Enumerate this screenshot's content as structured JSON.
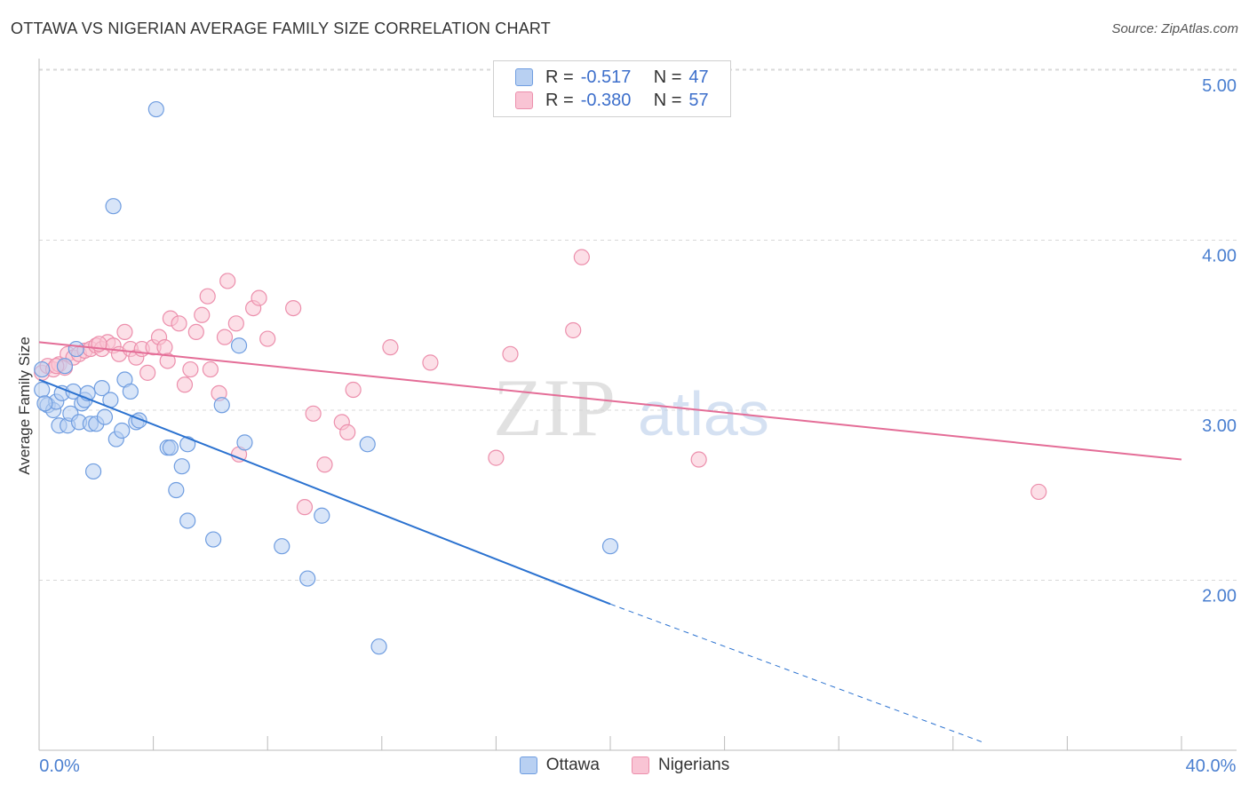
{
  "title": "OTTAWA VS NIGERIAN AVERAGE FAMILY SIZE CORRELATION CHART",
  "source": "Source: ZipAtlas.com",
  "watermark": {
    "zip": "ZIP",
    "atlas": "atlas"
  },
  "legend": {
    "rows": [
      {
        "r_label": "R =",
        "r_value": "-0.517",
        "n_label": "N =",
        "n_value": "47"
      },
      {
        "r_label": "R =",
        "r_value": "-0.380",
        "n_label": "N =",
        "n_value": "57"
      }
    ]
  },
  "colors": {
    "ottawa_fill": "#b8d0f2",
    "ottawa_stroke": "#6f9de0",
    "ottawa_line": "#2b72d0",
    "nigerian_fill": "#f9c4d4",
    "nigerian_stroke": "#ec8fac",
    "nigerian_line": "#e46d97",
    "axis_text": "#4a7fd0",
    "grid": "#d8d8d8"
  },
  "chart_data": {
    "type": "scatter",
    "title": "OTTAWA VS NIGERIAN AVERAGE FAMILY SIZE CORRELATION CHART",
    "xlabel": "",
    "ylabel": "Average Family Size",
    "xlim": [
      0,
      40
    ],
    "ylim": [
      1.0,
      5.15
    ],
    "x_tick_labels": [
      "0.0%",
      "40.0%"
    ],
    "y_ticks": [
      2.0,
      3.0,
      4.0,
      5.0
    ],
    "y_tick_labels": [
      "2.00",
      "3.00",
      "4.00",
      "5.00"
    ],
    "grid": "horizontal dashed",
    "legend_position": "bottom",
    "series": [
      {
        "name": "Ottawa",
        "r": -0.517,
        "n": 47,
        "trend": {
          "x_start": 0,
          "y_start": 3.18,
          "x_solid_end": 20,
          "y_solid_end": 1.86,
          "x_dash_end": 33,
          "y_dash_end": 1.05
        },
        "points": [
          [
            0.1,
            3.24
          ],
          [
            0.1,
            3.12
          ],
          [
            0.3,
            3.03
          ],
          [
            0.5,
            3.0
          ],
          [
            0.6,
            3.05
          ],
          [
            0.7,
            2.91
          ],
          [
            0.8,
            3.1
          ],
          [
            0.9,
            3.26
          ],
          [
            1.0,
            2.91
          ],
          [
            1.1,
            2.98
          ],
          [
            1.2,
            3.11
          ],
          [
            1.3,
            3.36
          ],
          [
            1.4,
            2.93
          ],
          [
            1.5,
            3.04
          ],
          [
            1.6,
            3.06
          ],
          [
            1.7,
            3.1
          ],
          [
            1.8,
            2.92
          ],
          [
            1.9,
            2.64
          ],
          [
            2.0,
            2.92
          ],
          [
            2.2,
            3.13
          ],
          [
            2.3,
            2.96
          ],
          [
            2.5,
            3.06
          ],
          [
            2.6,
            4.2
          ],
          [
            2.7,
            2.83
          ],
          [
            2.9,
            2.88
          ],
          [
            3.0,
            3.18
          ],
          [
            3.2,
            3.11
          ],
          [
            3.4,
            2.93
          ],
          [
            3.5,
            2.94
          ],
          [
            4.1,
            4.77
          ],
          [
            4.5,
            2.78
          ],
          [
            4.6,
            2.78
          ],
          [
            4.8,
            2.53
          ],
          [
            5.0,
            2.67
          ],
          [
            5.2,
            2.8
          ],
          [
            5.2,
            2.35
          ],
          [
            6.1,
            2.24
          ],
          [
            6.4,
            3.03
          ],
          [
            7.0,
            3.38
          ],
          [
            7.2,
            2.81
          ],
          [
            8.5,
            2.2
          ],
          [
            9.4,
            2.01
          ],
          [
            9.9,
            2.38
          ],
          [
            11.5,
            2.8
          ],
          [
            11.9,
            1.61
          ],
          [
            20.0,
            2.2
          ],
          [
            0.2,
            3.04
          ]
        ]
      },
      {
        "name": "Nigerians",
        "r": -0.38,
        "n": 57,
        "trend": {
          "x_start": 0,
          "y_start": 3.4,
          "x_end": 40,
          "y_end": 2.71
        },
        "points": [
          [
            0.1,
            3.22
          ],
          [
            0.3,
            3.26
          ],
          [
            0.5,
            3.24
          ],
          [
            0.7,
            3.27
          ],
          [
            0.9,
            3.25
          ],
          [
            1.0,
            3.33
          ],
          [
            1.2,
            3.31
          ],
          [
            1.4,
            3.33
          ],
          [
            1.6,
            3.35
          ],
          [
            1.8,
            3.36
          ],
          [
            2.0,
            3.38
          ],
          [
            2.2,
            3.36
          ],
          [
            2.4,
            3.4
          ],
          [
            2.6,
            3.38
          ],
          [
            2.8,
            3.33
          ],
          [
            3.0,
            3.46
          ],
          [
            3.2,
            3.36
          ],
          [
            3.4,
            3.31
          ],
          [
            3.6,
            3.36
          ],
          [
            3.8,
            3.22
          ],
          [
            4.0,
            3.37
          ],
          [
            4.2,
            3.43
          ],
          [
            4.4,
            3.37
          ],
          [
            4.5,
            3.29
          ],
          [
            4.6,
            3.54
          ],
          [
            4.9,
            3.51
          ],
          [
            5.1,
            3.15
          ],
          [
            5.3,
            3.24
          ],
          [
            5.5,
            3.46
          ],
          [
            5.7,
            3.56
          ],
          [
            5.9,
            3.67
          ],
          [
            6.0,
            3.24
          ],
          [
            6.3,
            3.1
          ],
          [
            6.5,
            3.43
          ],
          [
            6.6,
            3.76
          ],
          [
            6.9,
            3.51
          ],
          [
            7.0,
            2.74
          ],
          [
            7.5,
            3.6
          ],
          [
            7.7,
            3.66
          ],
          [
            8.0,
            3.42
          ],
          [
            8.9,
            3.6
          ],
          [
            9.3,
            2.43
          ],
          [
            9.6,
            2.98
          ],
          [
            10.0,
            2.68
          ],
          [
            10.6,
            2.93
          ],
          [
            10.8,
            2.87
          ],
          [
            11.0,
            3.12
          ],
          [
            12.3,
            3.37
          ],
          [
            13.7,
            3.28
          ],
          [
            16.0,
            2.72
          ],
          [
            16.5,
            3.33
          ],
          [
            18.7,
            3.47
          ],
          [
            19.0,
            3.9
          ],
          [
            23.1,
            2.71
          ],
          [
            35.0,
            2.52
          ],
          [
            2.1,
            3.39
          ],
          [
            0.6,
            3.26
          ]
        ]
      }
    ]
  }
}
